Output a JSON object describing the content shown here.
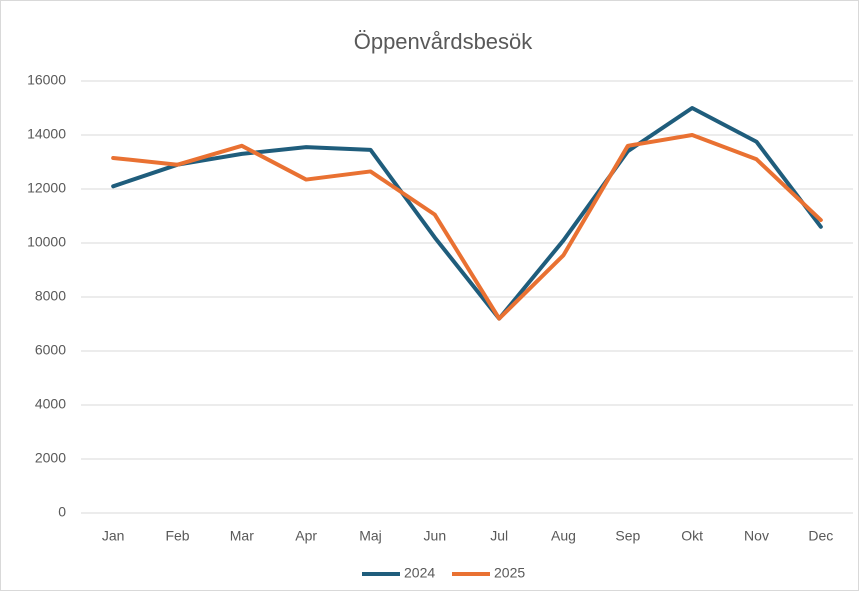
{
  "chart_data": {
    "type": "line",
    "title": "Öppenvårdsbesök",
    "categories": [
      "Jan",
      "Feb",
      "Mar",
      "Apr",
      "Maj",
      "Jun",
      "Jul",
      "Aug",
      "Sep",
      "Okt",
      "Nov",
      "Dec"
    ],
    "series": [
      {
        "name": "2024",
        "color": "#1f5d7c",
        "values": [
          12100,
          12900,
          13300,
          13550,
          13450,
          10200,
          7200,
          10100,
          13400,
          15000,
          13750,
          10600
        ]
      },
      {
        "name": "2025",
        "color": "#e97132",
        "values": [
          13150,
          12900,
          13600,
          12350,
          12650,
          11050,
          7200,
          9550,
          13600,
          14000,
          13100,
          10850
        ]
      }
    ],
    "ylim": [
      0,
      16000
    ],
    "yticks": [
      0,
      2000,
      4000,
      6000,
      8000,
      10000,
      12000,
      14000,
      16000
    ],
    "grid": true,
    "legend": "bottom"
  }
}
